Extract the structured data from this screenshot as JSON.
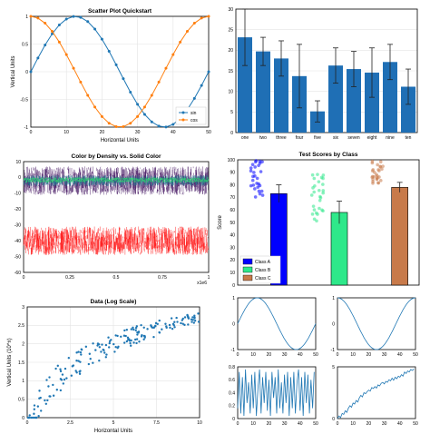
{
  "colors": {
    "blue": "#1f77b4",
    "orange": "#ff7f0e",
    "bar": "#1f6fb5",
    "purple": "#3b0a5a",
    "green": "#2ecc71",
    "red": "#ff0000",
    "classA": "#0000ff",
    "classB": "#2ee88a",
    "classC": "#c87a4a"
  },
  "chart_data": [
    {
      "id": "scatter",
      "type": "line",
      "title": "Scatter Plot Quickstart",
      "xlabel": "Horizontal Units",
      "ylabel": "Vertical Units",
      "xlim": [
        0,
        50
      ],
      "ylim": [
        -1,
        1
      ],
      "xticks": [
        "0",
        "10",
        "20",
        "30",
        "40",
        "50"
      ],
      "yticks": [
        "-1",
        "-0.5",
        "0",
        "0.5",
        "1"
      ],
      "x": [
        0,
        2,
        4,
        6,
        8,
        10,
        12,
        14,
        16,
        18,
        20,
        22,
        24,
        26,
        28,
        30,
        32,
        34,
        36,
        38,
        40,
        42,
        44,
        46,
        48,
        50
      ],
      "series": [
        {
          "name": "sin",
          "function": "sin",
          "period": 50
        },
        {
          "name": "cos",
          "function": "cos",
          "period": 50
        }
      ],
      "legend": "bottom-right",
      "grid": true
    },
    {
      "id": "bars",
      "type": "bar",
      "categories": [
        "one",
        "two",
        "three",
        "four",
        "five",
        "six",
        "seven",
        "eight",
        "nine",
        "ten"
      ],
      "values": [
        27,
        23,
        21,
        16,
        6,
        19,
        18,
        17,
        20,
        13
      ],
      "errors": [
        8,
        4,
        5,
        9,
        3,
        5,
        5,
        7,
        5,
        5
      ],
      "ylim": [
        0,
        35
      ],
      "yticks": [
        "0",
        "5",
        "10",
        "15",
        "20",
        "25",
        "30"
      ],
      "grid": true
    },
    {
      "id": "density",
      "type": "scatter",
      "title": "Color by Density vs. Solid Color",
      "xlim": [
        0,
        1
      ],
      "ylim": [
        -60,
        10
      ],
      "xticks": [
        "0",
        "0.25",
        "0.5",
        "0.75",
        "1"
      ],
      "xticks_note": "x1e6",
      "yticks": [
        "10",
        "0",
        "-10",
        "-20",
        "-30",
        "-40",
        "-50",
        "-60"
      ],
      "series": [
        {
          "name": "density",
          "center": -2,
          "spread": 9
        },
        {
          "name": "solid",
          "center": -40,
          "spread": 9
        }
      ]
    },
    {
      "id": "scores",
      "type": "bar",
      "title": "Test Scores by Class",
      "ylabel": "Score",
      "ylim": [
        0,
        100
      ],
      "yticks": [
        "0",
        "10",
        "20",
        "30",
        "40",
        "50",
        "60",
        "70",
        "80",
        "90",
        "100"
      ],
      "categories": [
        "Class A",
        "Class B",
        "Class C"
      ],
      "values": [
        73,
        58,
        78
      ],
      "errors": [
        7,
        9,
        4
      ],
      "legend": "bottom-left"
    },
    {
      "id": "logscale",
      "type": "scatter",
      "title": "Data (Log Scale)",
      "xlabel": "Horizontal Units",
      "ylabel": "Vertical Units (10^x)",
      "xlim": [
        0,
        10
      ],
      "ylim": [
        0,
        3
      ],
      "xticks": [
        "0",
        "2.5",
        "5",
        "7.5",
        "10"
      ],
      "yticks": [
        "0",
        "0.5",
        "1",
        "1.5",
        "2",
        "2.5",
        "3"
      ],
      "grid": true
    },
    {
      "id": "small1",
      "type": "line",
      "xlim": [
        0,
        50
      ],
      "ylim": [
        -1,
        1
      ],
      "xticks": [
        "0",
        "10",
        "20",
        "30",
        "40",
        "50"
      ],
      "yticks": [
        "-1",
        "0",
        "1"
      ],
      "function": "sin"
    },
    {
      "id": "small2",
      "type": "line",
      "xlim": [
        0,
        50
      ],
      "ylim": [
        -1,
        1
      ],
      "xticks": [
        "0",
        "10",
        "20",
        "30",
        "40",
        "50"
      ],
      "yticks": [
        "-1",
        "0",
        "1"
      ],
      "function": "cos"
    },
    {
      "id": "small3",
      "type": "line",
      "xlim": [
        0,
        50
      ],
      "ylim": [
        0,
        1
      ],
      "xticks": [
        "0",
        "10",
        "20",
        "30",
        "40",
        "50"
      ],
      "yticks": [
        "0",
        "0.2",
        "0.4",
        "0.6",
        "0.8"
      ],
      "values": [
        0.2,
        0.9,
        0.1,
        0.8,
        0.05,
        0.95,
        0.3,
        0.7,
        0.1,
        0.85,
        0.2,
        0.9,
        0.05,
        0.6,
        0.95,
        0.1,
        0.8,
        0.3,
        0.9,
        0.15,
        0.75,
        0.05,
        0.9,
        0.4,
        0.8,
        0.1,
        0.95,
        0.2,
        0.7,
        0.1,
        0.85,
        0.3,
        0.9,
        0.05,
        0.8,
        0.2,
        0.9,
        0.1,
        0.7,
        0.95,
        0.15,
        0.8,
        0.05,
        0.9,
        0.3,
        0.85,
        0.1,
        0.75,
        0.2,
        0.9
      ]
    },
    {
      "id": "small4",
      "type": "line",
      "xlim": [
        0,
        50
      ],
      "ylim": [
        0,
        10
      ],
      "xticks": [
        "0",
        "10",
        "20",
        "30",
        "40",
        "50"
      ],
      "yticks": [
        "0",
        "5"
      ],
      "values": [
        0,
        0.5,
        0.2,
        1,
        0.8,
        1.5,
        1.2,
        2,
        2.5,
        2.2,
        3,
        2.8,
        3.5,
        3.2,
        4,
        4.5,
        4.2,
        5,
        4.8,
        5.2,
        5.5,
        5.3,
        6,
        5.8,
        6.2,
        5.9,
        6.5,
        6.3,
        6.8,
        7,
        6.7,
        7.2,
        7,
        7.5,
        7.3,
        7.8,
        7.4,
        8,
        7.7,
        8.2,
        8,
        8.5,
        8.2,
        9,
        8.7,
        9.2,
        9,
        9.5,
        9.3,
        9.6
      ]
    }
  ]
}
